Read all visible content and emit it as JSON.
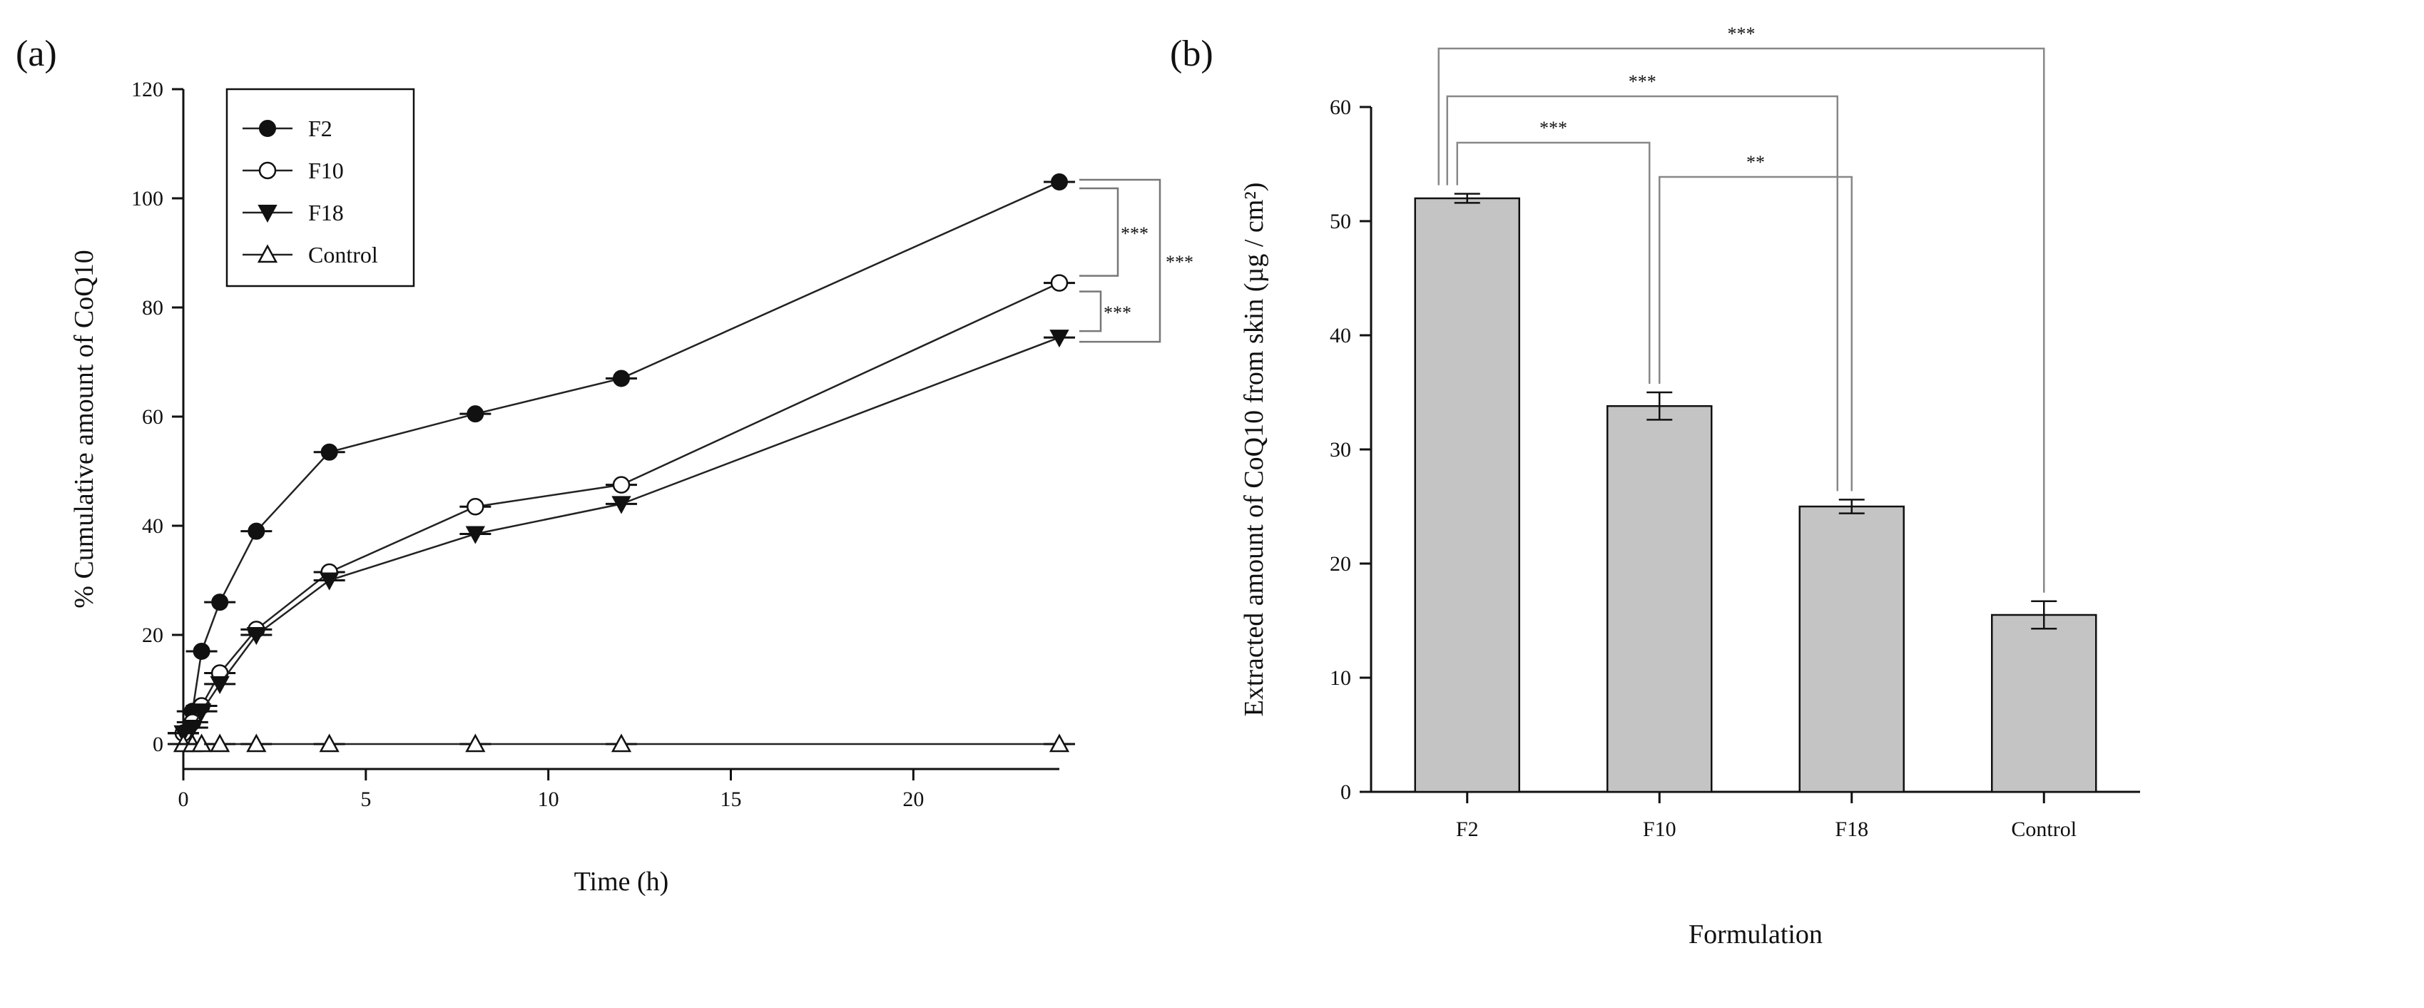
{
  "chart_data": [
    {
      "panel_label": "(a)",
      "type": "line",
      "xlabel": "Time (h)",
      "ylabel": "% Cumulative amount of CoQ10",
      "xlim": [
        0,
        24
      ],
      "ylim": [
        0,
        120
      ],
      "xticks": [
        0,
        5,
        10,
        15,
        20
      ],
      "yticks": [
        0,
        20,
        40,
        60,
        80,
        100,
        120
      ],
      "grid": false,
      "legend_position": "top-left",
      "series": [
        {
          "name": "F2",
          "marker": "filled-circle",
          "x": [
            0,
            0.25,
            0.5,
            1,
            2,
            4,
            8,
            12,
            24
          ],
          "y": [
            2,
            6,
            17,
            26,
            39,
            53.5,
            60.5,
            67,
            103
          ]
        },
        {
          "name": "F10",
          "marker": "open-circle",
          "x": [
            0,
            0.25,
            0.5,
            1,
            2,
            4,
            8,
            12,
            24
          ],
          "y": [
            2,
            4,
            7,
            13,
            21,
            31.5,
            43.5,
            47.5,
            84.5
          ]
        },
        {
          "name": "F18",
          "marker": "filled-triangle-down",
          "x": [
            0,
            0.25,
            0.5,
            1,
            2,
            4,
            8,
            12,
            24
          ],
          "y": [
            2,
            3,
            6,
            11,
            20,
            30,
            38.5,
            44,
            74.5
          ]
        },
        {
          "name": "Control",
          "marker": "open-triangle-up",
          "x": [
            0,
            0.25,
            0.5,
            1,
            2,
            4,
            8,
            12,
            24
          ],
          "y": [
            0,
            0,
            0,
            0,
            0,
            0,
            0,
            0,
            0
          ]
        }
      ],
      "significance": [
        {
          "pair": [
            "F2",
            "F10"
          ],
          "label": "***"
        },
        {
          "pair": [
            "F10",
            "F18"
          ],
          "label": "***"
        },
        {
          "pair": [
            "F2",
            "F18"
          ],
          "label": "***"
        }
      ]
    },
    {
      "panel_label": "(b)",
      "type": "bar",
      "xlabel": "Formulation",
      "ylabel": "Extracted amount of CoQ10 from skin (µg / cm²)",
      "ylim": [
        0,
        60
      ],
      "yticks": [
        0,
        10,
        20,
        30,
        40,
        50,
        60
      ],
      "categories": [
        "F2",
        "F10",
        "F18",
        "Control"
      ],
      "values": [
        52,
        33.8,
        25,
        15.5
      ],
      "errors": [
        0.4,
        1.2,
        0.6,
        1.2
      ],
      "bar_color": "#c4c4c4",
      "significance": [
        {
          "pair": [
            "F2",
            "Control"
          ],
          "label": "***"
        },
        {
          "pair": [
            "F2",
            "F18"
          ],
          "label": "***"
        },
        {
          "pair": [
            "F2",
            "F10"
          ],
          "label": "***"
        },
        {
          "pair": [
            "F10",
            "F18"
          ],
          "label": "**"
        }
      ]
    }
  ]
}
